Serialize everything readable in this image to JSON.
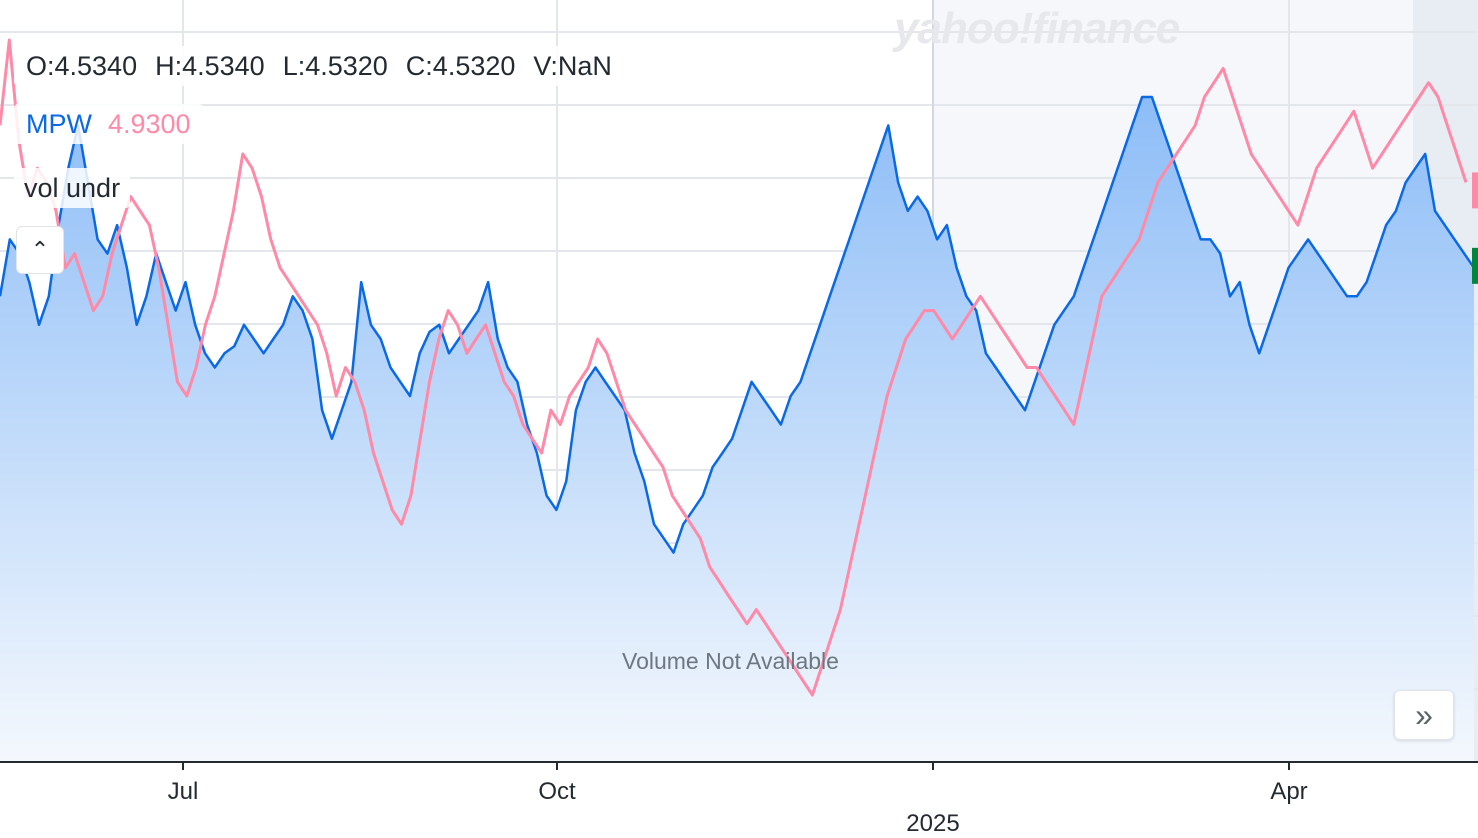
{
  "watermark": "yahoo!finance",
  "ohlc": {
    "open": "O:4.5340",
    "high": "H:4.5340",
    "low": "L:4.5320",
    "close": "C:4.5320",
    "volume": "V:NaN"
  },
  "legend": {
    "symbol": "MPW",
    "compare_value": "4.9300"
  },
  "volume_label": "vol undr",
  "volume_message": "Volume Not Available",
  "controls": {
    "collapse_icon": "chevron-up-icon",
    "scroll_icon": "double-chevron-right-icon"
  },
  "colors": {
    "primary": "#0b69e3",
    "compare": "#ff8aa8",
    "fill_top": "#8dbdf7",
    "fill_bottom": "#f4f8fd"
  },
  "chart_data": {
    "type": "line",
    "x_ticks": [
      "Jul",
      "Oct",
      "2025",
      "Apr"
    ],
    "grid": true,
    "series": [
      {
        "name": "MPW",
        "style": "area",
        "values": [
          320,
          360,
          350,
          330,
          300,
          320,
          370,
          410,
          440,
          400,
          360,
          350,
          370,
          340,
          300,
          320,
          350,
          330,
          310,
          330,
          300,
          280,
          270,
          280,
          285,
          300,
          290,
          280,
          290,
          300,
          320,
          310,
          290,
          240,
          220,
          240,
          260,
          330,
          300,
          290,
          270,
          260,
          250,
          280,
          295,
          300,
          280,
          290,
          300,
          310,
          330,
          290,
          270,
          260,
          230,
          210,
          180,
          170,
          190,
          240,
          260,
          270,
          260,
          250,
          240,
          210,
          190,
          160,
          150,
          140,
          160,
          170,
          180,
          200,
          210,
          220,
          240,
          260,
          250,
          240,
          230,
          250,
          260,
          280,
          300,
          320,
          340,
          360,
          380,
          400,
          420,
          440,
          400,
          380,
          390,
          380,
          360,
          370,
          340,
          320,
          310,
          280,
          270,
          260,
          250,
          240,
          260,
          280,
          300,
          310,
          320,
          340,
          360,
          380,
          400,
          420,
          440,
          460,
          460,
          440,
          420,
          400,
          380,
          360,
          360,
          350,
          320,
          330,
          300,
          280,
          300,
          320,
          340,
          350,
          360,
          350,
          340,
          330,
          320,
          320,
          330,
          350,
          370,
          380,
          400,
          410,
          420,
          380,
          370,
          360,
          350,
          340
        ]
      },
      {
        "name": "compare",
        "style": "line",
        "values": [
          440,
          500,
          430,
          390,
          410,
          400,
          380,
          340,
          350,
          330,
          310,
          320,
          350,
          370,
          390,
          380,
          370,
          340,
          300,
          260,
          250,
          270,
          300,
          320,
          350,
          380,
          420,
          410,
          390,
          360,
          340,
          330,
          320,
          310,
          300,
          280,
          250,
          270,
          260,
          240,
          210,
          190,
          170,
          160,
          180,
          220,
          260,
          290,
          310,
          300,
          280,
          290,
          300,
          280,
          260,
          250,
          230,
          220,
          210,
          240,
          230,
          250,
          260,
          270,
          290,
          280,
          260,
          240,
          230,
          220,
          210,
          200,
          180,
          170,
          160,
          150,
          130,
          120,
          110,
          100,
          90,
          100,
          90,
          80,
          70,
          60,
          50,
          40,
          60,
          80,
          100,
          130,
          160,
          190,
          220,
          250,
          270,
          290,
          300,
          310,
          310,
          300,
          290,
          300,
          310,
          320,
          310,
          300,
          290,
          280,
          270,
          270,
          260,
          250,
          240,
          230,
          260,
          290,
          320,
          330,
          340,
          350,
          360,
          380,
          400,
          410,
          420,
          430,
          440,
          460,
          470,
          480,
          460,
          440,
          420,
          410,
          400,
          390,
          380,
          370,
          390,
          410,
          420,
          430,
          440,
          450,
          430,
          410,
          420,
          430,
          440,
          450,
          460,
          470,
          460,
          440,
          420,
          400
        ]
      }
    ]
  }
}
